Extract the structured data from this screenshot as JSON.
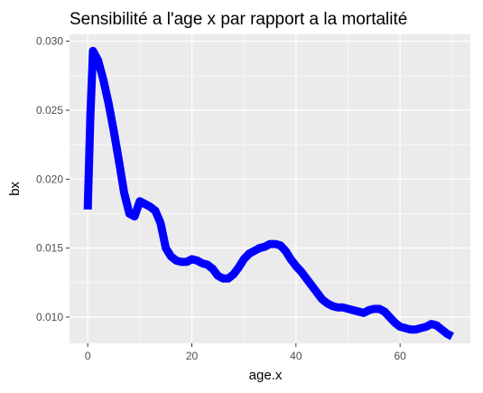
{
  "chart_data": {
    "type": "line",
    "title": "Sensibilité a l'age x par rapport a la mortalité",
    "xlabel": "age.x",
    "ylabel": "bx",
    "xlim": [
      -3.5,
      73.5
    ],
    "ylim": [
      0.0081,
      0.0305
    ],
    "x_ticks": [
      0,
      20,
      40,
      60
    ],
    "x_tick_labels": [
      "0",
      "20",
      "40",
      "60"
    ],
    "x_minor_ticks": [
      10,
      30,
      50,
      70
    ],
    "y_ticks": [
      0.01,
      0.015,
      0.02,
      0.025,
      0.03
    ],
    "y_tick_labels": [
      "0.010",
      "0.015",
      "0.020",
      "0.025",
      "0.030"
    ],
    "y_minor_ticks": [
      0.0125,
      0.0175,
      0.0225,
      0.0275
    ],
    "grid": true,
    "legend": "none",
    "colors": {
      "line": "#0000ff",
      "panel": "#ebebeb",
      "grid": "#ffffff"
    },
    "series": [
      {
        "x": [
          0,
          0.5,
          1,
          2,
          3,
          4,
          5,
          6,
          7,
          8,
          9,
          10,
          11,
          12,
          13,
          14,
          15,
          16,
          17,
          18,
          19,
          20,
          21,
          22,
          23,
          24,
          25,
          26,
          27,
          28,
          29,
          30,
          31,
          32,
          33,
          34,
          35,
          36,
          37,
          38,
          39,
          40,
          41,
          42,
          43,
          44,
          45,
          46,
          47,
          48,
          49,
          50,
          51,
          52,
          53,
          54,
          55,
          56,
          57,
          58,
          59,
          60,
          61,
          62,
          63,
          64,
          65,
          66,
          67,
          68,
          69,
          70
        ],
        "values": [
          0.0178,
          0.0245,
          0.0293,
          0.0286,
          0.0272,
          0.0255,
          0.0235,
          0.0213,
          0.019,
          0.0175,
          0.0173,
          0.0184,
          0.0182,
          0.018,
          0.0177,
          0.0168,
          0.015,
          0.0144,
          0.0141,
          0.014,
          0.014,
          0.0142,
          0.0141,
          0.0139,
          0.0138,
          0.0135,
          0.013,
          0.0128,
          0.0128,
          0.0131,
          0.0136,
          0.0142,
          0.0146,
          0.0148,
          0.015,
          0.0151,
          0.0153,
          0.0153,
          0.0152,
          0.0148,
          0.0142,
          0.0137,
          0.0133,
          0.0128,
          0.0123,
          0.0118,
          0.0113,
          0.011,
          0.0108,
          0.0107,
          0.0107,
          0.0106,
          0.0105,
          0.0104,
          0.0103,
          0.0105,
          0.0106,
          0.0106,
          0.0104,
          0.01,
          0.0096,
          0.0093,
          0.0092,
          0.0091,
          0.0091,
          0.0092,
          0.0093,
          0.0095,
          0.0094,
          0.0091,
          0.0088,
          0.0086
        ]
      }
    ]
  }
}
